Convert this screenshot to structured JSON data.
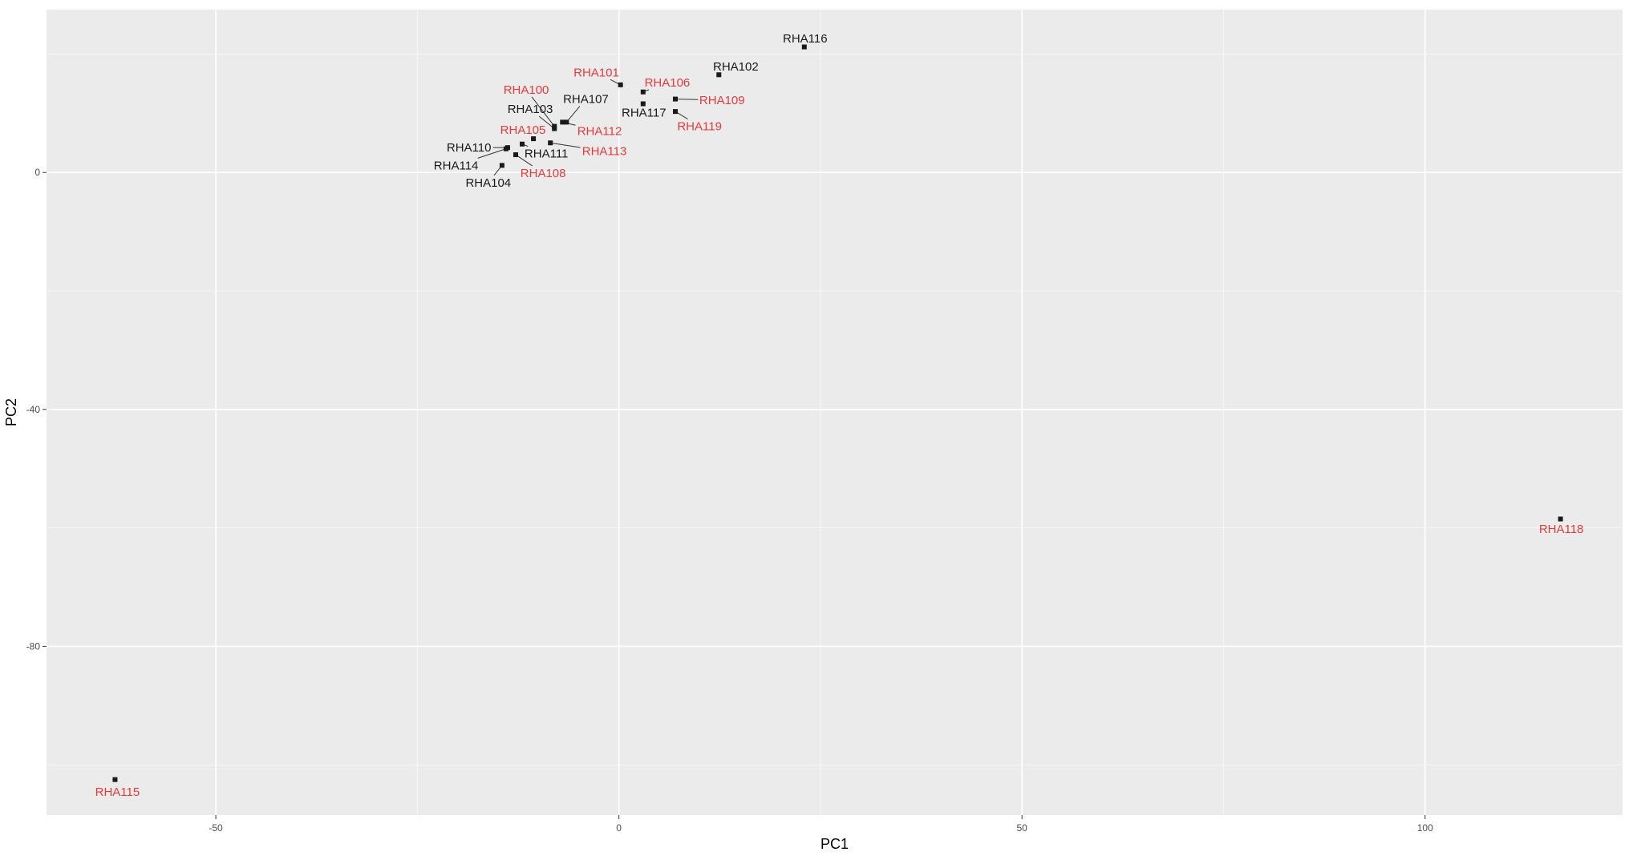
{
  "chart_data": {
    "type": "scatter",
    "title": "",
    "xlabel": "PC1",
    "ylabel": "PC2",
    "xlim": [
      -71,
      124.5
    ],
    "ylim": [
      -108.5,
      27.5
    ],
    "x_ticks": [
      -50,
      0,
      50,
      100
    ],
    "y_ticks": [
      0,
      -40,
      -80
    ],
    "x_tick_labels": [
      "-50",
      "0",
      "50",
      "100"
    ],
    "y_tick_labels": [
      "0",
      "-40",
      "-80"
    ],
    "grid": true,
    "legend": "none",
    "colors": {
      "panel": "#ebebeb",
      "grid": "#ffffff",
      "point": "#1a1a1a",
      "label_group_a": "#e8393c",
      "label_group_b": "#1a1a1a",
      "leader": "#333333"
    },
    "points": [
      {
        "label": "RHA100",
        "group": "a",
        "x": -8.0,
        "y": 7.8,
        "lx": -11.5,
        "ly": 14.0
      },
      {
        "label": "RHA101",
        "group": "a",
        "x": 0.2,
        "y": 14.8,
        "lx": -2.8,
        "ly": 16.9
      },
      {
        "label": "RHA102",
        "group": "b",
        "x": 12.4,
        "y": 16.5,
        "lx": 14.5,
        "ly": 17.9
      },
      {
        "label": "RHA103",
        "group": "b",
        "x": -8.0,
        "y": 7.4,
        "lx": -11.0,
        "ly": 10.7
      },
      {
        "label": "RHA104",
        "group": "b",
        "x": -14.5,
        "y": 1.2,
        "lx": -16.2,
        "ly": -1.7
      },
      {
        "label": "RHA105",
        "group": "a",
        "x": -10.6,
        "y": 5.7,
        "lx": -11.9,
        "ly": 7.2
      },
      {
        "label": "RHA106",
        "group": "a",
        "x": 3.0,
        "y": 13.6,
        "lx": 6.0,
        "ly": 15.2
      },
      {
        "label": "RHA107",
        "group": "b",
        "x": -6.5,
        "y": 8.5,
        "lx": -4.1,
        "ly": 12.4
      },
      {
        "label": "RHA108",
        "group": "a",
        "x": -12.8,
        "y": 3.0,
        "lx": -9.4,
        "ly": -0.1
      },
      {
        "label": "RHA109",
        "group": "a",
        "x": 7.0,
        "y": 12.4,
        "lx": 12.8,
        "ly": 12.2
      },
      {
        "label": "RHA110",
        "group": "b",
        "x": -13.8,
        "y": 4.2,
        "lx": -18.6,
        "ly": 4.2
      },
      {
        "label": "RHA111",
        "group": "b",
        "x": -12.0,
        "y": 4.8,
        "lx": -9.0,
        "ly": 3.2
      },
      {
        "label": "RHA112",
        "group": "a",
        "x": -7.0,
        "y": 8.5,
        "lx": -2.4,
        "ly": 7.0
      },
      {
        "label": "RHA113",
        "group": "a",
        "x": -8.5,
        "y": 5.0,
        "lx": -1.8,
        "ly": 3.6
      },
      {
        "label": "RHA114",
        "group": "b",
        "x": -14.0,
        "y": 4.0,
        "lx": -20.2,
        "ly": 1.2
      },
      {
        "label": "RHA115",
        "group": "a",
        "x": -62.5,
        "y": -102.5,
        "lx": -62.2,
        "ly": -104.6
      },
      {
        "label": "RHA116",
        "group": "b",
        "x": 23.0,
        "y": 21.2,
        "lx": 23.1,
        "ly": 22.6
      },
      {
        "label": "RHA117",
        "group": "b",
        "x": 3.0,
        "y": 11.6,
        "lx": 3.1,
        "ly": 10.1
      },
      {
        "label": "RHA118",
        "group": "a",
        "x": 116.8,
        "y": -58.5,
        "lx": 116.9,
        "ly": -60.2
      },
      {
        "label": "RHA119",
        "group": "a",
        "x": 7.0,
        "y": 10.3,
        "lx": 10.0,
        "ly": 7.8
      }
    ]
  }
}
